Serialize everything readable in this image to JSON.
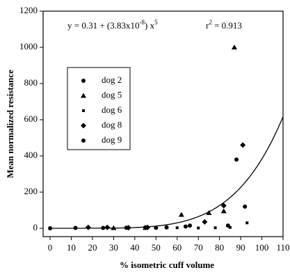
{
  "chart_data": {
    "type": "scatter",
    "x_label": "% isometric cuff volume",
    "y_label": "Mean normalized resistance",
    "equation": {
      "text": "y = 0.31 + (3.83x10",
      "exp1": "-8",
      "text2": ") x",
      "exp2": "5"
    },
    "r2": {
      "text": "r",
      "exp": "2",
      "text2": " = 0.913"
    },
    "fit": {
      "intercept": 0.31,
      "coefficient": 3.83e-08,
      "exponent": 5,
      "color": "#000000"
    },
    "xlim": [
      -3.3,
      110
    ],
    "ylim": [
      -46,
      1200
    ],
    "xticks": [
      0,
      10,
      20,
      30,
      40,
      50,
      60,
      70,
      80,
      90,
      100,
      110
    ],
    "yticks": [
      0,
      200,
      400,
      600,
      800,
      1000,
      1200
    ],
    "series": [
      {
        "name": "dog 2",
        "marker": "circle",
        "color": "#000000",
        "x": [
          0,
          12,
          25,
          36,
          45,
          55
        ],
        "values": [
          0,
          2,
          2,
          3,
          5,
          5
        ]
      },
      {
        "name": "dog 5",
        "marker": "triangle",
        "color": "#000000",
        "x": [
          30,
          45,
          62,
          75,
          82,
          87
        ],
        "values": [
          2,
          3,
          75,
          85,
          95,
          1000
        ]
      },
      {
        "name": "dog 6",
        "marker": "square",
        "color": "#000000",
        "x": [
          60,
          70,
          78,
          85,
          93
        ],
        "values": [
          3,
          2,
          3,
          5,
          30
        ]
      },
      {
        "name": "dog 8",
        "marker": "diamond",
        "color": "#000000",
        "x": [
          18,
          27,
          37,
          46,
          73,
          82,
          91
        ],
        "values": [
          5,
          5,
          3,
          5,
          35,
          125,
          460
        ]
      },
      {
        "name": "dog 9",
        "marker": "circle",
        "color": "#000000",
        "x": [
          50,
          64,
          66,
          84,
          88,
          92
        ],
        "values": [
          3,
          10,
          15,
          15,
          380,
          120
        ]
      }
    ]
  }
}
